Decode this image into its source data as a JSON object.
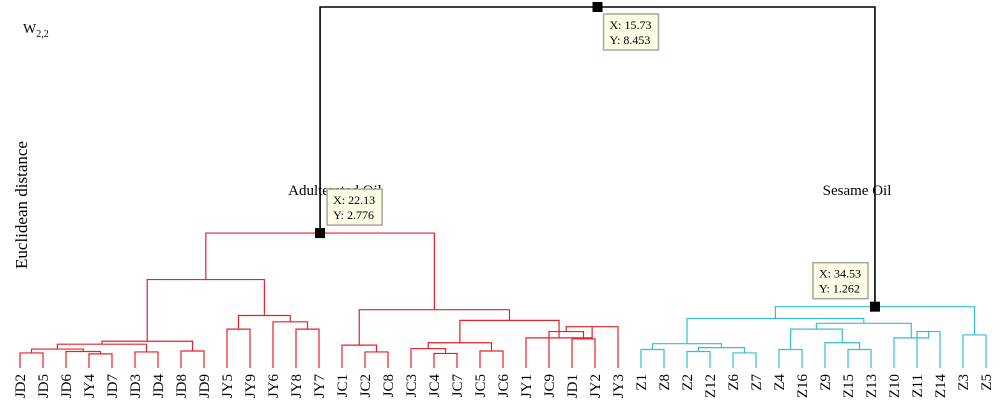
{
  "chart_data": {
    "type": "dendrogram",
    "ylabel": "Euclidean distance",
    "corner_label": "W",
    "corner_label_sub": "2,2",
    "cluster_labels": {
      "adulterated": "Adulterated Oil",
      "sesame": "Sesame Oil"
    },
    "colors": {
      "adulterated": "#e8202a",
      "sesame": "#33bfd8",
      "root": "#000000",
      "tooltip_bg": "#fbfbe6",
      "tooltip_border": "#a8a898"
    },
    "leaves": [
      "JD2",
      "JD5",
      "JD6",
      "JY4",
      "JD7",
      "JD3",
      "JD4",
      "JD8",
      "JD9",
      "JY5",
      "JY9",
      "JY6",
      "JY8",
      "JY7",
      "JC1",
      "JC2",
      "JC8",
      "JC3",
      "JC4",
      "JC7",
      "JC5",
      "JC6",
      "JY1",
      "JC9",
      "JD1",
      "JY2",
      "JY3",
      "Z1",
      "Z8",
      "Z2",
      "Z12",
      "Z6",
      "Z7",
      "Z4",
      "Z16",
      "Z9",
      "Z15",
      "Z13",
      "Z10",
      "Z11",
      "Z14",
      "Z3",
      "Z5"
    ],
    "links": [
      {
        "a": "L0",
        "b": "L1",
        "h": 0.31,
        "g": "adulterated"
      },
      {
        "a": "L3",
        "b": "L4",
        "h": 0.29,
        "g": "adulterated"
      },
      {
        "a": "L2",
        "b": "N1",
        "h": 0.34,
        "g": "adulterated"
      },
      {
        "a": "N0",
        "b": "N2",
        "h": 0.39,
        "g": "adulterated"
      },
      {
        "a": "L5",
        "b": "L6",
        "h": 0.33,
        "g": "adulterated"
      },
      {
        "a": "N3",
        "b": "N4",
        "h": 0.49,
        "g": "adulterated"
      },
      {
        "a": "L7",
        "b": "L8",
        "h": 0.35,
        "g": "adulterated"
      },
      {
        "a": "N5",
        "b": "N6",
        "h": 0.55,
        "g": "adulterated"
      },
      {
        "a": "L9",
        "b": "L10",
        "h": 0.8,
        "g": "adulterated"
      },
      {
        "a": "L12",
        "b": "L13",
        "h": 0.8,
        "g": "adulterated"
      },
      {
        "a": "L11",
        "b": "N9",
        "h": 0.95,
        "g": "adulterated"
      },
      {
        "a": "N8",
        "b": "N10",
        "h": 1.08,
        "g": "adulterated"
      },
      {
        "a": "N7",
        "b": "N11",
        "h": 1.82,
        "g": "adulterated"
      },
      {
        "a": "L15",
        "b": "L16",
        "h": 0.33,
        "g": "adulterated"
      },
      {
        "a": "L14",
        "b": "N13",
        "h": 0.47,
        "g": "adulterated"
      },
      {
        "a": "L18",
        "b": "L19",
        "h": 0.3,
        "g": "adulterated"
      },
      {
        "a": "L17",
        "b": "N15",
        "h": 0.4,
        "g": "adulterated"
      },
      {
        "a": "L20",
        "b": "L21",
        "h": 0.35,
        "g": "adulterated"
      },
      {
        "a": "N16",
        "b": "N17",
        "h": 0.52,
        "g": "adulterated"
      },
      {
        "a": "L24",
        "b": "L25",
        "h": 0.6,
        "g": "adulterated"
      },
      {
        "a": "L23",
        "b": "N19",
        "h": 0.75,
        "g": "adulterated"
      },
      {
        "a": "L26",
        "b": "N20",
        "h": 0.85,
        "g": "adulterated"
      },
      {
        "a": "L22",
        "b": "N21",
        "h": 0.62,
        "g": "adulterated"
      },
      {
        "a": "N18",
        "b": "N22",
        "h": 0.98,
        "g": "adulterated"
      },
      {
        "a": "N14",
        "b": "N23",
        "h": 1.2,
        "g": "adulterated"
      },
      {
        "a": "N12",
        "b": "N24",
        "h": 2.776,
        "g": "adulterated"
      },
      {
        "a": "L27",
        "b": "L28",
        "h": 0.38,
        "g": "sesame"
      },
      {
        "a": "L29",
        "b": "L30",
        "h": 0.34,
        "g": "sesame"
      },
      {
        "a": "L31",
        "b": "L32",
        "h": 0.31,
        "g": "sesame"
      },
      {
        "a": "N27",
        "b": "N28",
        "h": 0.42,
        "g": "sesame"
      },
      {
        "a": "N26",
        "b": "N29",
        "h": 0.5,
        "g": "sesame"
      },
      {
        "a": "L33",
        "b": "L34",
        "h": 0.38,
        "g": "sesame"
      },
      {
        "a": "L36",
        "b": "L37",
        "h": 0.38,
        "g": "sesame"
      },
      {
        "a": "L35",
        "b": "N32",
        "h": 0.52,
        "g": "sesame"
      },
      {
        "a": "N31",
        "b": "N33",
        "h": 0.8,
        "g": "sesame"
      },
      {
        "a": "L39",
        "b": "L40",
        "h": 0.75,
        "g": "sesame"
      },
      {
        "a": "L38",
        "b": "N35",
        "h": 0.62,
        "g": "sesame"
      },
      {
        "a": "N34",
        "b": "N36",
        "h": 0.92,
        "g": "sesame"
      },
      {
        "a": "N30",
        "b": "N37",
        "h": 1.02,
        "g": "sesame"
      },
      {
        "a": "L41",
        "b": "L42",
        "h": 0.68,
        "g": "sesame"
      },
      {
        "a": "N38",
        "b": "N39",
        "h": 1.262,
        "g": "sesame"
      },
      {
        "a": "N25",
        "b": "N40",
        "h": 8.453,
        "g": "root"
      }
    ],
    "datatips": [
      {
        "node": "N41",
        "x": "X: 15.73",
        "y": "Y: 8.453"
      },
      {
        "node": "N25",
        "x": "X: 22.13",
        "y": "Y: 2.776"
      },
      {
        "node": "N40",
        "x": "X: 34.53",
        "y": "Y: 1.262"
      }
    ]
  }
}
